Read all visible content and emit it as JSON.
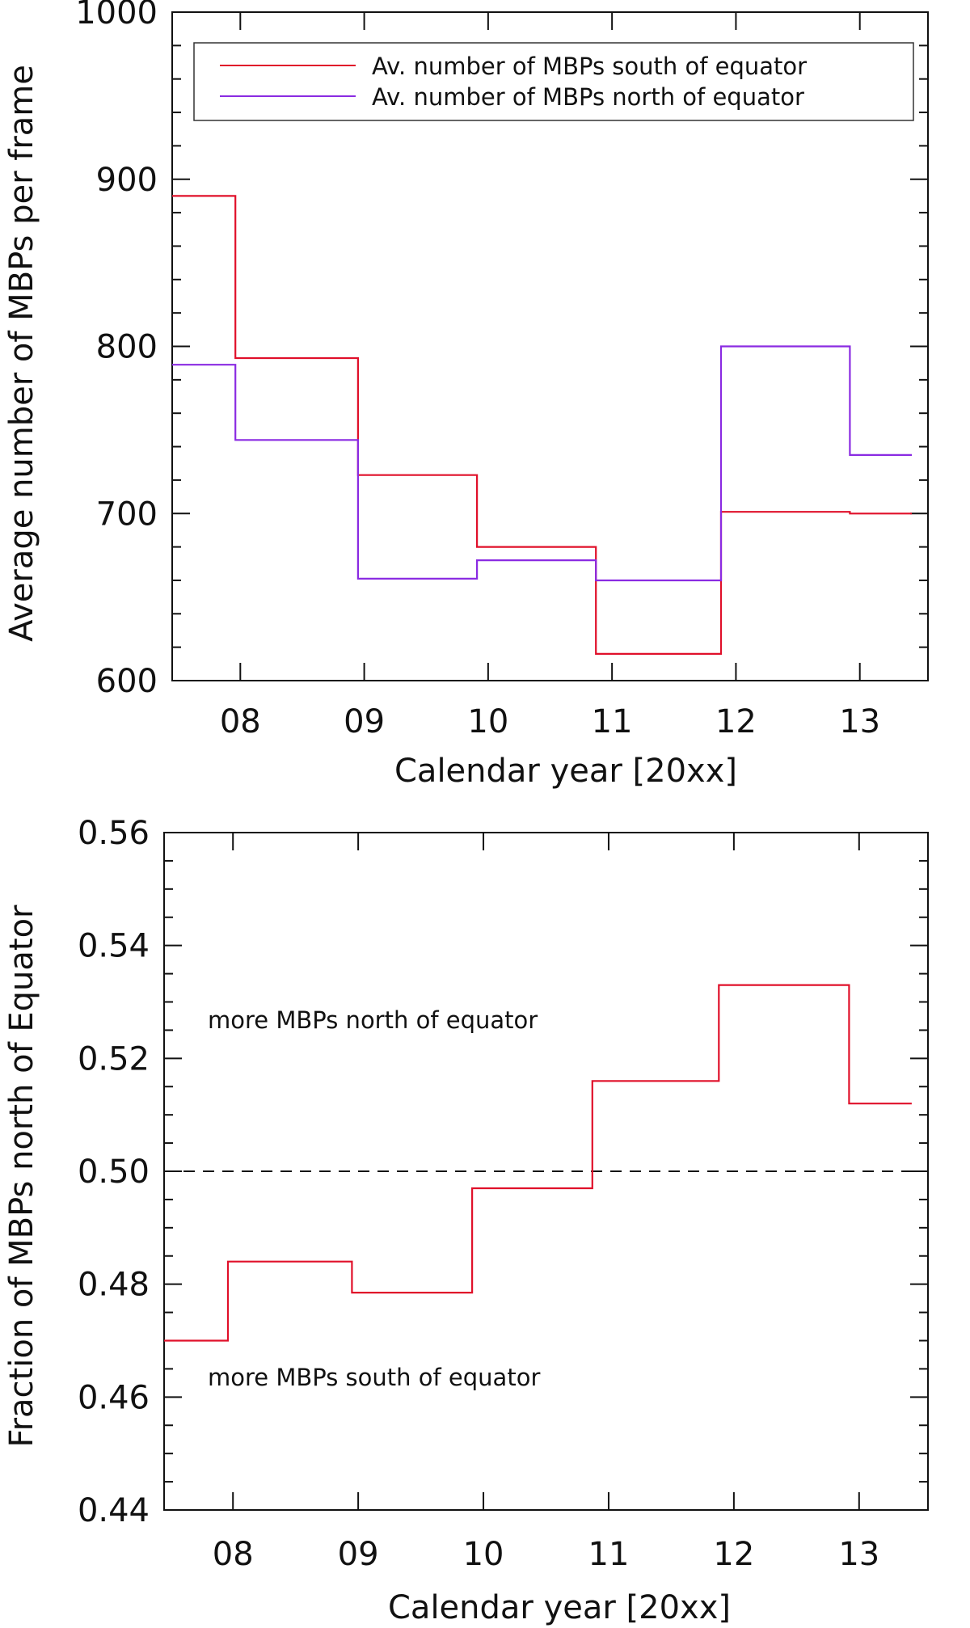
{
  "colors": {
    "south": "#e0102a",
    "north": "#8a2be2",
    "fraction": "#e0102a",
    "axis": "#111111",
    "reference": "#111111"
  },
  "chart_data": [
    {
      "type": "line",
      "style": "step",
      "xlabel": "Calendar year [20xx]",
      "ylabel": "Average number of MBPs per frame",
      "ylim": [
        600,
        1000
      ],
      "yticks": [
        "600",
        "700",
        "800",
        "900",
        "1000"
      ],
      "xlim": [
        2007.45,
        2013.55
      ],
      "xticks": [
        "08",
        "09",
        "10",
        "11",
        "12",
        "13"
      ],
      "xtick_values": [
        2008,
        2009,
        2010,
        2011,
        2012,
        2013
      ],
      "legend_position": "top-right",
      "series": [
        {
          "name": "Av. number of MBPs south of equator",
          "color_key": "south",
          "edges": [
            2007.45,
            2007.96,
            2008.95,
            2009.91,
            2010.87,
            2011.88,
            2012.92,
            2013.42
          ],
          "values": [
            890,
            793,
            723,
            680,
            616,
            701,
            700
          ]
        },
        {
          "name": "Av. number of MBPs north of equator",
          "color_key": "north",
          "edges": [
            2007.45,
            2007.96,
            2008.95,
            2009.91,
            2010.87,
            2011.88,
            2012.92,
            2013.42
          ],
          "values": [
            789,
            744,
            661,
            672,
            660,
            800,
            735
          ]
        }
      ]
    },
    {
      "type": "line",
      "style": "step",
      "xlabel": "Calendar year [20xx]",
      "ylabel": "Fraction of MBPs north of Equator",
      "ylim": [
        0.44,
        0.56
      ],
      "yticks": [
        "0.44",
        "0.46",
        "0.48",
        "0.50",
        "0.52",
        "0.54",
        "0.56"
      ],
      "xlim": [
        2007.45,
        2013.55
      ],
      "xticks": [
        "08",
        "09",
        "10",
        "11",
        "12",
        "13"
      ],
      "xtick_values": [
        2008,
        2009,
        2010,
        2011,
        2012,
        2013
      ],
      "reference_line": 0.5,
      "annotations": {
        "upper": "more MBPs north of equator",
        "lower": "more MBPs south of equator"
      },
      "series": [
        {
          "name": "Fraction of MBPs north of Equator",
          "color_key": "fraction",
          "edges": [
            2007.45,
            2007.96,
            2008.95,
            2009.91,
            2010.87,
            2011.88,
            2012.92,
            2013.42
          ],
          "values": [
            0.47,
            0.484,
            0.4785,
            0.497,
            0.516,
            0.533,
            0.512
          ]
        }
      ]
    }
  ]
}
